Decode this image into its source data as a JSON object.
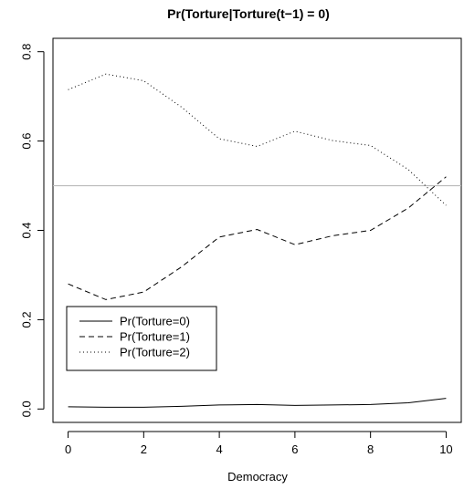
{
  "chart_data": {
    "type": "line",
    "title": "Pr(Torture|Torture(t−1) = 0)",
    "xlabel": "Democracy",
    "ylabel": "",
    "xlim": [
      -0.4,
      10.4
    ],
    "ylim": [
      -0.03,
      0.83
    ],
    "x_ticks": [
      0,
      2,
      4,
      6,
      8,
      10
    ],
    "y_ticks": [
      0.0,
      0.2,
      0.4,
      0.6,
      0.8
    ],
    "x_tick_labels": [
      "0",
      "2",
      "4",
      "6",
      "8",
      "10"
    ],
    "y_tick_labels": [
      "0.0",
      "0.2",
      "0.4",
      "0.6",
      "0.8"
    ],
    "x": [
      0,
      1,
      2,
      3,
      4,
      5,
      6,
      7,
      8,
      9,
      10
    ],
    "reference_line": {
      "y": 0.5,
      "color": "#bbbbbb"
    },
    "series": [
      {
        "name": "Pr(Torture=0)",
        "linestyle": "solid",
        "values": [
          0.005,
          0.004,
          0.004,
          0.006,
          0.009,
          0.01,
          0.008,
          0.009,
          0.01,
          0.014,
          0.024
        ]
      },
      {
        "name": "Pr(Torture=1)",
        "linestyle": "dashed",
        "values": [
          0.28,
          0.245,
          0.262,
          0.318,
          0.385,
          0.402,
          0.368,
          0.388,
          0.4,
          0.45,
          0.52
        ]
      },
      {
        "name": "Pr(Torture=2)",
        "linestyle": "dotted",
        "values": [
          0.715,
          0.75,
          0.735,
          0.676,
          0.605,
          0.588,
          0.622,
          0.601,
          0.59,
          0.536,
          0.456
        ]
      }
    ],
    "legend": {
      "placement": "left"
    },
    "grid": false
  }
}
